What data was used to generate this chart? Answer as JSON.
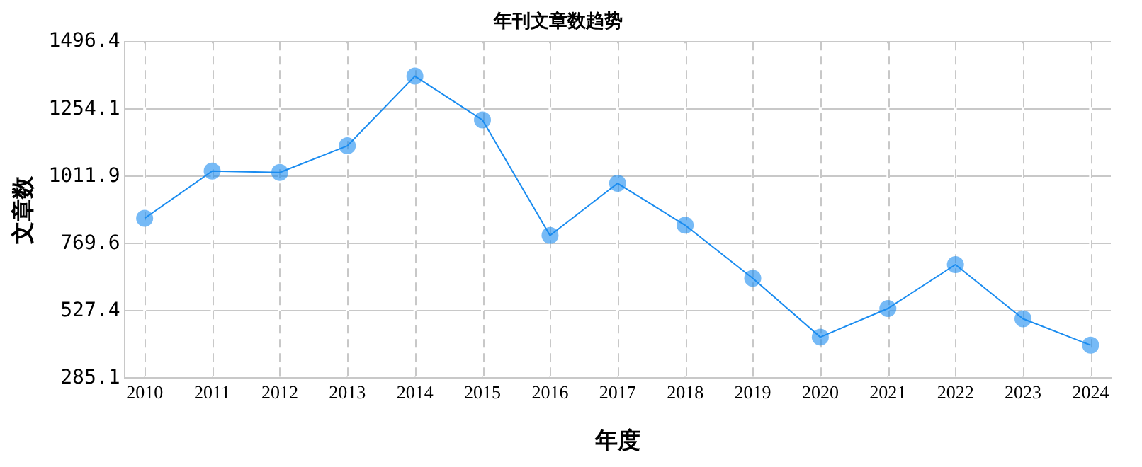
{
  "chart_data": {
    "type": "line",
    "title": "年刊文章数趋势",
    "xlabel": "年度",
    "ylabel": "文章数",
    "x": [
      2010,
      2011,
      2012,
      2013,
      2014,
      2015,
      2016,
      2017,
      2018,
      2019,
      2020,
      2021,
      2022,
      2023,
      2024
    ],
    "series": [
      {
        "color": "#1a8cf0",
        "values": [
          861,
          1031,
          1026,
          1122,
          1373,
          1215,
          799,
          987,
          836,
          645,
          433,
          536,
          694,
          499,
          404
        ]
      }
    ],
    "xlim": [
      2009.7,
      2024.3
    ],
    "xticks": [
      2010,
      2011,
      2012,
      2013,
      2014,
      2015,
      2016,
      2017,
      2018,
      2019,
      2020,
      2021,
      2022,
      2023,
      2024
    ],
    "ylim": [
      285.1,
      1496.4
    ],
    "yticks": [
      {
        "value": 285.1,
        "label": "285.1"
      },
      {
        "value": 527.4,
        "label": "527.4"
      },
      {
        "value": 769.6,
        "label": "769.6"
      },
      {
        "value": 1011.9,
        "label": "1011.9"
      },
      {
        "value": 1254.1,
        "label": "1254.1"
      },
      {
        "value": 1496.4,
        "label": "1496.4"
      }
    ],
    "grid": true,
    "marker": "circle",
    "line_style": "solid",
    "legend": false
  }
}
